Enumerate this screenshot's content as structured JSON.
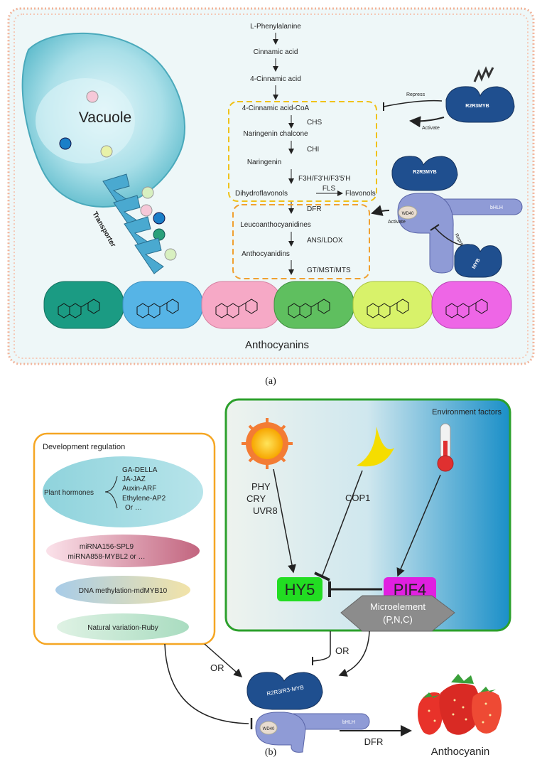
{
  "panel_a": {
    "pathway": [
      "L-Phenylalanine",
      "Cinnamic acid",
      "4-Cinnamic acid",
      "4-Cinnamic acid-CoA",
      "Naringenin chalcone",
      "Naringenin",
      "Dihydroflavonols",
      "Leucoanthocyanidines",
      "Anthocyanidins"
    ],
    "enzymes": {
      "chs": "CHS",
      "chi": "CHI",
      "f3h": "F3H/F3'H/F3'5'H",
      "fls": "FLS",
      "dfr": "DFR",
      "ans": "ANS/LDOX",
      "gt": "GT/MST/MTS"
    },
    "flavonols": "Flavonols",
    "vacuole": "Vacuole",
    "transporter": "Transporter",
    "anthocyanins": "Anthocyanins",
    "repress": "Repress",
    "activate": "Activate",
    "r2r3myb": "R2R3MYB",
    "bhlh": "bHLH",
    "wd40": "WD40",
    "myb": "MYB",
    "caption": "(a)",
    "colors": {
      "border": "#f2b49a",
      "bg": "#eef7f8",
      "yellow_box": "#f0c21a",
      "orange_box": "#f0a030",
      "myb_blue": "#1f4f8f"
    }
  },
  "panel_b": {
    "dev_title": "Development regulation",
    "plant_hormones": "Plant hormones",
    "hormones": [
      "GA-DELLA",
      "JA-JAZ",
      "Auxin-ARF",
      "Ethylene-AP2",
      "Or …"
    ],
    "mirna": [
      "miRNA156-SPL9",
      "miRNA858-MYBL2  or  …"
    ],
    "dna": "DNA methylation-mdMYB10",
    "natural": "Natural  variation-Ruby",
    "env_title": "Environment factors",
    "photoreceptors": [
      "PHY",
      "CRY",
      "UVR8"
    ],
    "cop1": "COP1",
    "hy5": "HY5",
    "pif4": "PIF4",
    "micro": [
      "Microelement",
      "(P,N,C)"
    ],
    "or": "OR",
    "r2r3": "R2R3/R3-MYB",
    "bhlh": "bHLH",
    "wd40": "WD40",
    "dfr": "DFR",
    "anthocyanin": "Anthocyanin",
    "caption": "(b)",
    "colors": {
      "hy5": "#22dd22",
      "pif4": "#e020e0",
      "orange": "#f5a623",
      "green": "#2ca02c"
    }
  }
}
